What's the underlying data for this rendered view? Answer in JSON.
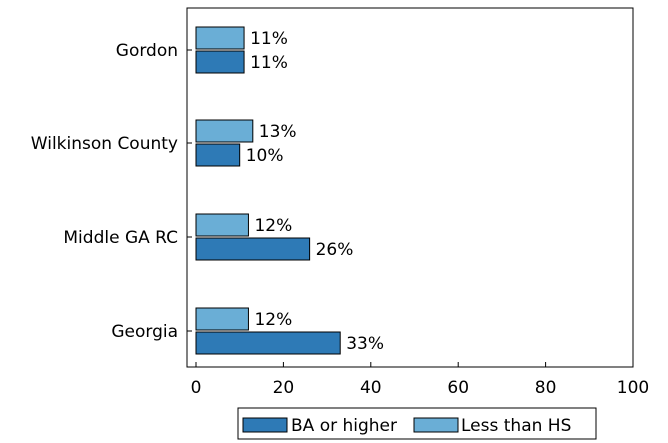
{
  "chart_data": {
    "type": "bar",
    "orientation": "horizontal",
    "title": "",
    "xlabel": "",
    "ylabel": "",
    "categories": [
      "Gordon",
      "Wilkinson County",
      "Middle GA RC",
      "Georgia"
    ],
    "series": [
      {
        "name": "BA or higher",
        "values": [
          11,
          10,
          26,
          33
        ],
        "labels": [
          "11%",
          "10%",
          "26%",
          "33%"
        ],
        "color": "#2e7ab6"
      },
      {
        "name": "Less than HS",
        "values": [
          11,
          13,
          12,
          12
        ],
        "labels": [
          "11%",
          "13%",
          "12%",
          "12%"
        ],
        "color": "#6aaed6"
      }
    ],
    "xlim": [
      0,
      100
    ],
    "xticks": [
      0,
      20,
      40,
      60,
      80,
      100
    ],
    "xtick_labels": [
      "0",
      "20",
      "40",
      "60",
      "80",
      "100"
    ],
    "grid": false,
    "legend_position": "bottom"
  }
}
